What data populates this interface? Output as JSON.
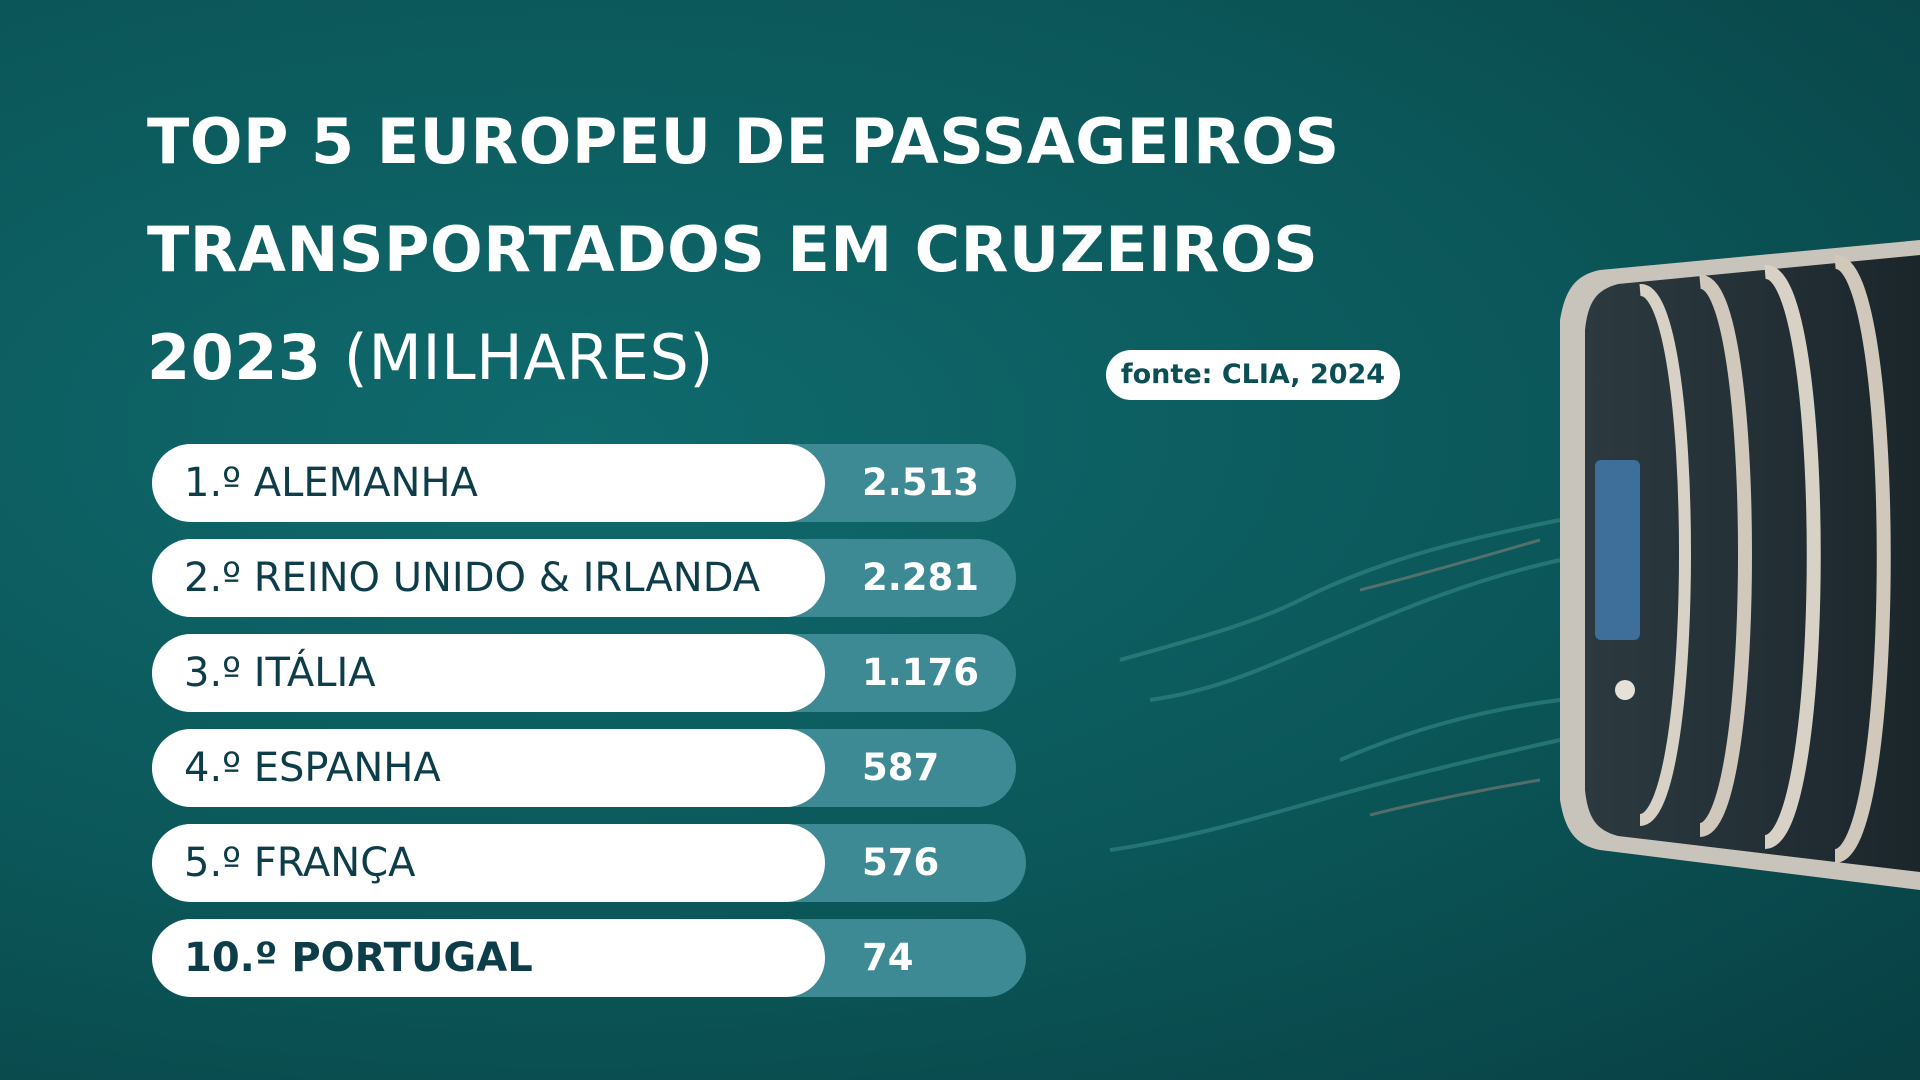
{
  "title": {
    "line1": "TOP 5 EUROPEU DE PASSAGEIROS",
    "line2": "TRANSPORTADOS EM CRUZEIROS",
    "line3_year": "2023",
    "line3_unit": "(MILHARES)"
  },
  "source": "fonte: CLIA, 2024",
  "colors": {
    "background": "#0b5658",
    "label_pill": "#ffffff",
    "value_pill": "#3e8a94",
    "label_text": "#0e3d4a",
    "value_text": "#ffffff"
  },
  "chart_data": {
    "type": "bar",
    "title": "TOP 5 EUROPEU DE PASSAGEIROS TRANSPORTADOS EM CRUZEIROS 2023 (MILHARES)",
    "categories": [
      "1.º ALEMANHA",
      "2.º REINO UNIDO & IRLANDA",
      "3.º ITÁLIA",
      "4.º ESPANHA",
      "5.º FRANÇA",
      "10.º PORTUGAL"
    ],
    "values": [
      2513,
      2281,
      1176,
      587,
      576,
      74
    ],
    "value_labels": [
      "2.513",
      "2.281",
      "1.176",
      "587",
      "576",
      "74"
    ],
    "highlighted": [
      "10.º PORTUGAL"
    ],
    "orientation": "horizontal",
    "grid": false
  }
}
